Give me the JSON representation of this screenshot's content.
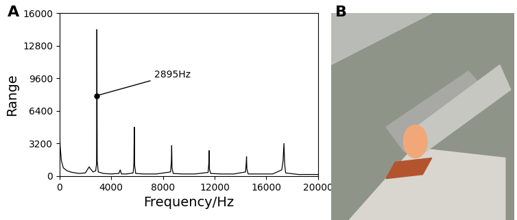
{
  "chart_data": {
    "type": "line",
    "panel_label": "A",
    "x_label": "Frequency/Hz",
    "y_label": "Range",
    "x": [
      0,
      50,
      150,
      300,
      600,
      1000,
      1500,
      2000,
      2300,
      2400,
      2600,
      2800,
      2870,
      2895,
      2920,
      3000,
      3400,
      4000,
      4600,
      4700,
      4800,
      5200,
      5700,
      5760,
      5790,
      5820,
      5900,
      6500,
      7500,
      8600,
      8660,
      8685,
      8710,
      8800,
      9500,
      10500,
      11500,
      11560,
      11580,
      11600,
      11700,
      12500,
      13500,
      14400,
      14450,
      14475,
      14500,
      14600,
      15500,
      16500,
      17200,
      17300,
      17370,
      17420,
      17500,
      18500,
      19500,
      20000
    ],
    "values": [
      4700,
      3000,
      1500,
      800,
      500,
      350,
      250,
      300,
      900,
      700,
      400,
      500,
      1200,
      14400,
      1500,
      400,
      250,
      200,
      250,
      600,
      200,
      200,
      300,
      1200,
      4800,
      1000,
      250,
      200,
      200,
      400,
      1500,
      3000,
      800,
      250,
      200,
      200,
      350,
      1300,
      2500,
      700,
      250,
      200,
      200,
      400,
      1300,
      1900,
      700,
      200,
      200,
      200,
      600,
      1500,
      3200,
      1200,
      300,
      150,
      150,
      150
    ],
    "color": "#000000",
    "xlim": [
      0,
      20000
    ],
    "xticks": [
      0,
      4000,
      8000,
      12000,
      16000,
      20000
    ],
    "ylim": [
      0,
      16000
    ],
    "yticks": [
      0,
      3200,
      6400,
      9600,
      12800,
      16000
    ],
    "annotation": {
      "text": "2895Hz",
      "x": 2895,
      "y": 7900
    }
  },
  "image_panel": {
    "label": "B"
  }
}
